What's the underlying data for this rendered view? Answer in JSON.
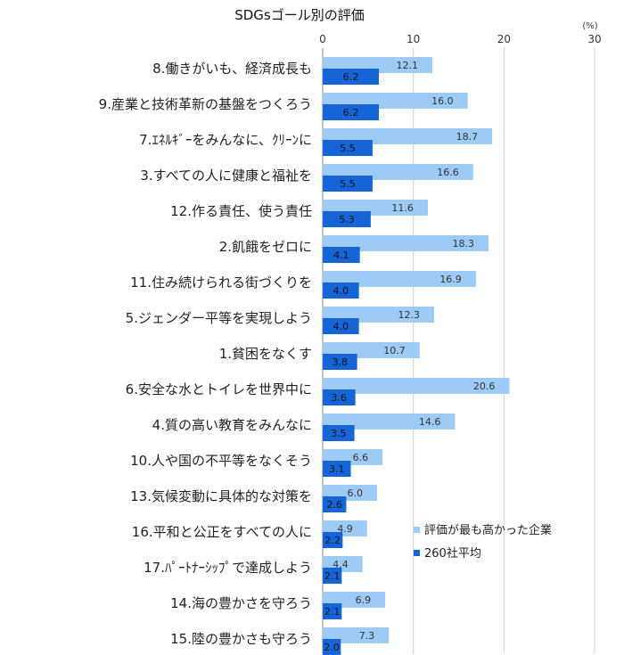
{
  "chart_data": {
    "type": "bar",
    "orientation": "horizontal",
    "title": "SDGsゴール別の評価",
    "unit_label": "(%)",
    "xlim": [
      0,
      30
    ],
    "xticks": [
      "0",
      "10",
      "20",
      "30"
    ],
    "grid": true,
    "legend_position": "right-bottom",
    "categories": [
      "8.働きがいも、経済成長も",
      "9.産業と技術革新の基盤をつくろう",
      "7.ｴﾈﾙｷﾞｰをみんなに、ｸﾘｰﾝに",
      "3.すべての人に健康と福祉を",
      "12.作る責任、使う責任",
      "2.飢餓をゼロに",
      "11.住み続けられる街づくりを",
      "5.ジェンダー平等を実現しよう",
      "1.貧困をなくす",
      "6.安全な水とトイレを世界中に",
      "4.質の高い教育をみんなに",
      "10.人や国の不平等をなくそう",
      "13.気候変動に具体的な対策を",
      "16.平和と公正をすべての人に",
      "17.ﾊﾟｰﾄﾅｰｼｯﾌﾟで達成しよう",
      "14.海の豊かさを守ろう",
      "15.陸の豊かさも守ろう"
    ],
    "series": [
      {
        "name": "評価が最も高かった企業",
        "color": "#9ecbf5",
        "values": [
          12.1,
          16.0,
          18.7,
          16.6,
          11.6,
          18.3,
          16.9,
          12.3,
          10.7,
          20.6,
          14.6,
          6.6,
          6.0,
          4.9,
          4.4,
          6.9,
          7.3
        ],
        "labels": [
          "12.1",
          "16.0",
          "18.7",
          "16.6",
          "11.6",
          "18.3",
          "16.9",
          "12.3",
          "10.7",
          "20.6",
          "14.6",
          "6.6",
          "6.0",
          "4.9",
          "4.4",
          "6.9",
          "7.3"
        ]
      },
      {
        "name": "260社平均",
        "color": "#1565d8",
        "values": [
          6.2,
          6.2,
          5.5,
          5.5,
          5.3,
          4.1,
          4.0,
          4.0,
          3.8,
          3.6,
          3.5,
          3.1,
          2.6,
          2.2,
          2.1,
          2.1,
          2.0
        ],
        "labels": [
          "6.2",
          "6.2",
          "5.5",
          "5.5",
          "5.3",
          "4.1",
          "4.0",
          "4.0",
          "3.8",
          "3.6",
          "3.5",
          "3.1",
          "2.6",
          "2.2",
          "2.1",
          "2.1",
          "2.0"
        ]
      }
    ]
  }
}
